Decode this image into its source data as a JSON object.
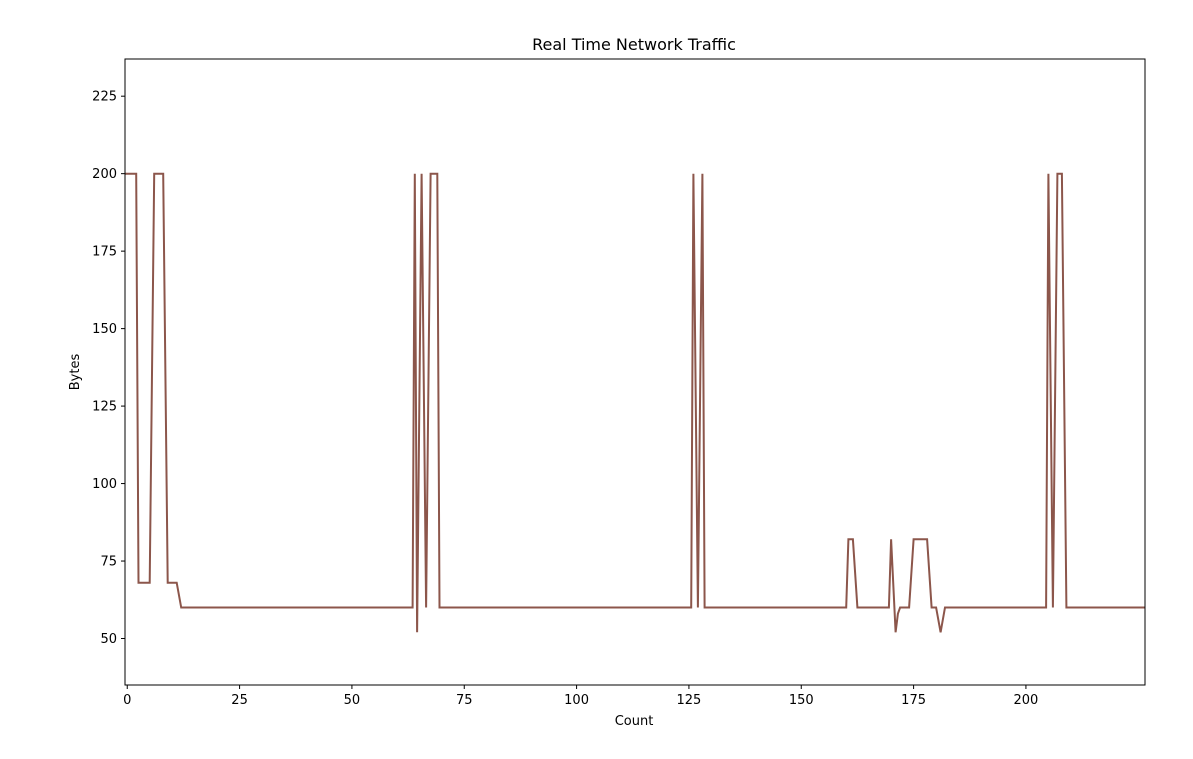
{
  "chart_data": {
    "type": "line",
    "title": "Real Time Network Traffic",
    "xlabel": "Count",
    "ylabel": "Bytes",
    "xlim": [
      -0.5,
      226.5
    ],
    "ylim": [
      35,
      237
    ],
    "xticks": [
      0,
      25,
      50,
      75,
      100,
      125,
      150,
      175,
      200
    ],
    "yticks": [
      50,
      75,
      100,
      125,
      150,
      175,
      200,
      225
    ],
    "grid": false,
    "colors": {
      "line": "#8c564b",
      "axis": "#000000",
      "background": "#ffffff"
    },
    "series": [
      {
        "points": [
          [
            -0.5,
            200
          ],
          [
            2,
            200
          ],
          [
            2.5,
            68
          ],
          [
            5,
            68
          ],
          [
            6,
            200
          ],
          [
            8,
            200
          ],
          [
            9,
            68
          ],
          [
            11,
            68
          ],
          [
            12,
            60
          ],
          [
            63.5,
            60
          ],
          [
            64,
            200
          ],
          [
            64.5,
            52
          ],
          [
            65.5,
            200
          ],
          [
            66.5,
            60
          ],
          [
            67.5,
            200
          ],
          [
            69,
            200
          ],
          [
            69.5,
            60
          ],
          [
            125.5,
            60
          ],
          [
            126,
            200
          ],
          [
            127,
            60
          ],
          [
            128,
            200
          ],
          [
            128.5,
            60
          ],
          [
            160,
            60
          ],
          [
            160.5,
            82
          ],
          [
            161.5,
            82
          ],
          [
            162.5,
            60
          ],
          [
            169.5,
            60
          ],
          [
            170,
            82
          ],
          [
            171,
            52
          ],
          [
            171.5,
            58
          ],
          [
            172,
            60
          ],
          [
            174,
            60
          ],
          [
            175,
            82
          ],
          [
            178,
            82
          ],
          [
            179,
            60
          ],
          [
            180,
            60
          ],
          [
            181,
            52
          ],
          [
            182,
            60
          ],
          [
            204.5,
            60
          ],
          [
            205,
            200
          ],
          [
            206,
            60
          ],
          [
            207,
            200
          ],
          [
            208,
            200
          ],
          [
            209,
            60
          ],
          [
            226.5,
            60
          ]
        ]
      }
    ]
  }
}
